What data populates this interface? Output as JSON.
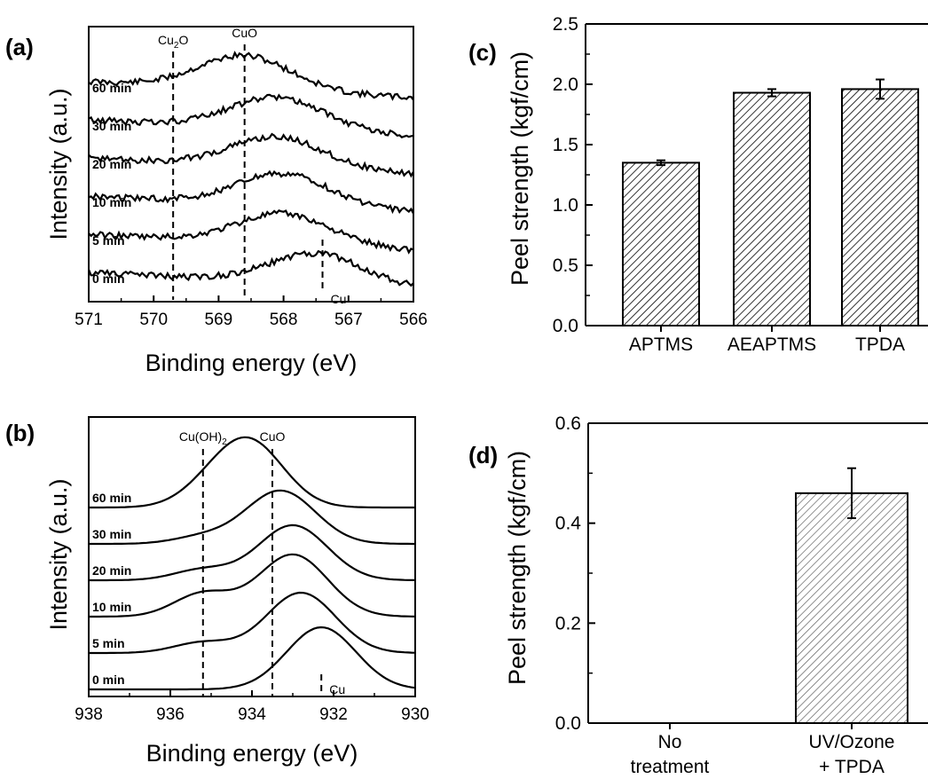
{
  "panels": {
    "a": {
      "label": "(a)"
    },
    "b": {
      "label": "(b)"
    },
    "c": {
      "label": "(c)"
    },
    "d": {
      "label": "(d)"
    }
  },
  "chart_data": [
    {
      "id": "a",
      "type": "line",
      "xlabel": "Binding energy (eV)",
      "ylabel": "Intensity (a.u.)",
      "xlim": [
        571,
        566
      ],
      "xticks": [
        "571",
        "570",
        "569",
        "568",
        "567",
        "566"
      ],
      "series": [
        {
          "name": "60 min",
          "peak_eV": 568.6
        },
        {
          "name": "30 min",
          "peak_eV": 568.1
        },
        {
          "name": "20 min",
          "peak_eV": 568.1
        },
        {
          "name": "10 min",
          "peak_eV": 568.0
        },
        {
          "name": "5 min",
          "peak_eV": 568.0
        },
        {
          "name": "0 min",
          "peak_eV": 567.5
        }
      ],
      "reference_lines": [
        {
          "label": "Cu₂O",
          "x": 569.7
        },
        {
          "label": "CuO",
          "x": 568.6
        },
        {
          "label": "Cu",
          "x": 567.4
        }
      ]
    },
    {
      "id": "b",
      "type": "line",
      "xlabel": "Binding energy (eV)",
      "ylabel": "Intensity (a.u.)",
      "xlim": [
        938,
        930
      ],
      "xticks": [
        "938",
        "936",
        "934",
        "932",
        "930"
      ],
      "series": [
        {
          "name": "60 min",
          "peak_eV": 934.1
        },
        {
          "name": "30 min",
          "peak_eV": 933.3
        },
        {
          "name": "20 min",
          "peak_eV": 933.0
        },
        {
          "name": "10 min",
          "peak_eV": 933.0
        },
        {
          "name": "5 min",
          "peak_eV": 932.8
        },
        {
          "name": "0 min",
          "peak_eV": 932.3
        }
      ],
      "reference_lines": [
        {
          "label": "Cu(OH)₂",
          "x": 935.2
        },
        {
          "label": "CuO",
          "x": 933.5
        },
        {
          "label": "Cu",
          "x": 932.3
        }
      ]
    },
    {
      "id": "c",
      "type": "bar",
      "ylabel": "Peel strength (kgf/cm)",
      "categories": [
        "APTMS",
        "AEAPTMS",
        "TPDA"
      ],
      "values": [
        1.35,
        1.93,
        1.96
      ],
      "errors": [
        0.02,
        0.03,
        0.08
      ],
      "ylim": [
        0,
        2.5
      ],
      "yticks": [
        "0.0",
        "0.5",
        "1.0",
        "1.5",
        "2.0",
        "2.5"
      ]
    },
    {
      "id": "d",
      "type": "bar",
      "ylabel": "Peel strength (kgf/cm)",
      "categories": [
        [
          "No",
          "treatment"
        ],
        [
          "UV/Ozone",
          "+ TPDA"
        ]
      ],
      "values": [
        0,
        0.46
      ],
      "errors": [
        0,
        0.05
      ],
      "ylim": [
        0,
        0.6
      ],
      "yticks": [
        "0.0",
        "0.2",
        "0.4",
        "0.6"
      ]
    }
  ]
}
